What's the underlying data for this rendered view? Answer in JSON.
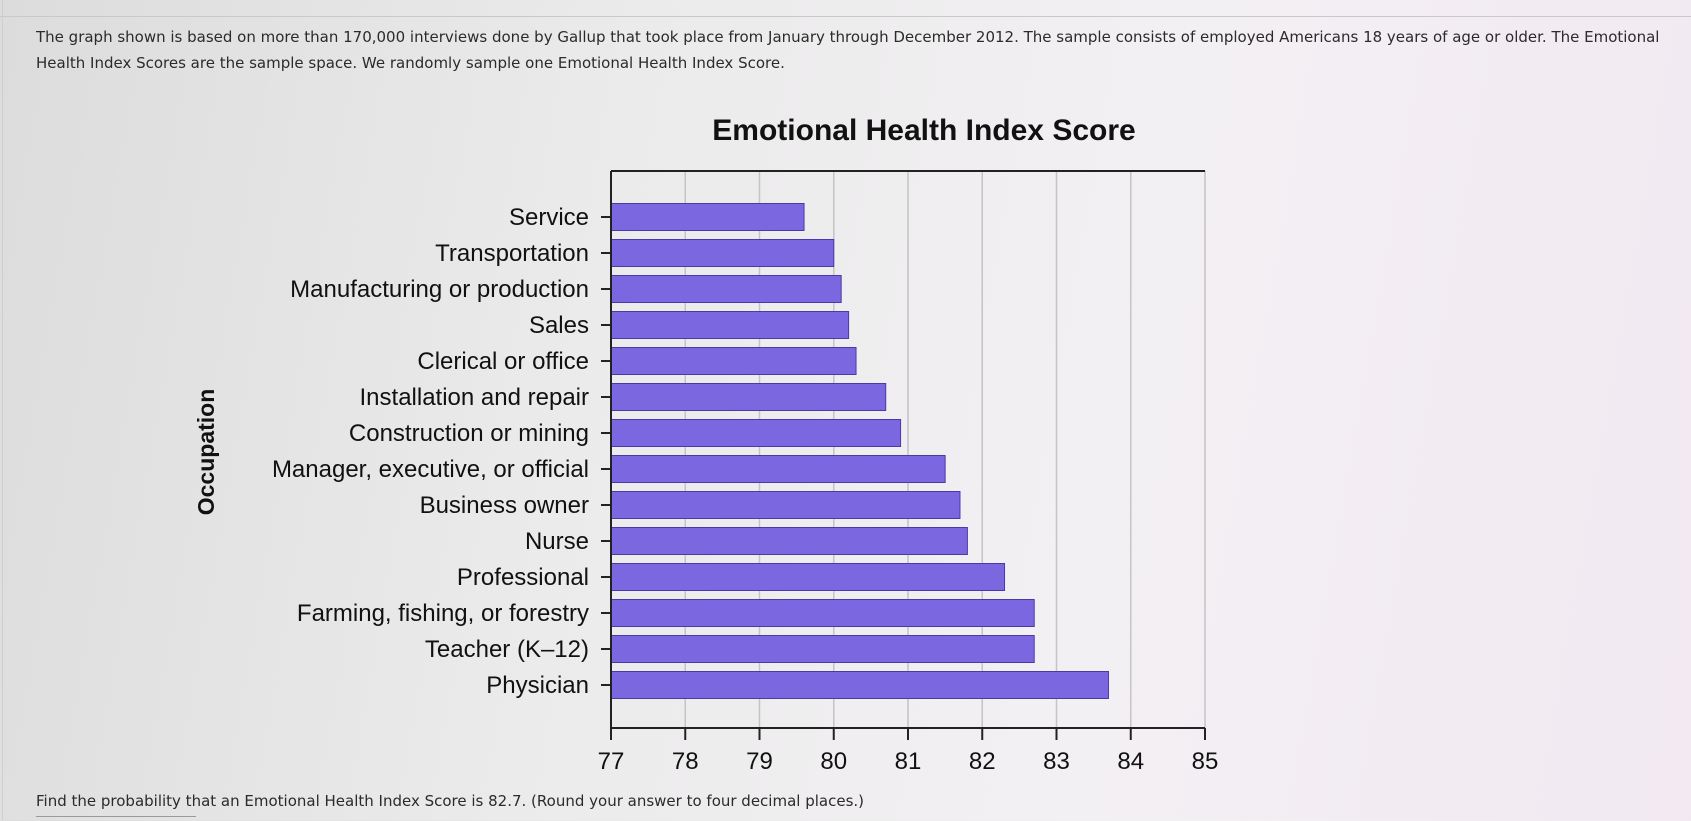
{
  "intro_text": "The graph shown is based on more than 170,000 interviews done by Gallup that took place from January through December 2012. The sample consists of employed Americans 18 years of age or older. The Emotional Health Index Scores are the sample space. We randomly sample one Emotional Health Index Score.",
  "question_text": "Find the probability that an Emotional Health Index Score is 82.7. (Round your answer to four decimal places.)",
  "chart_data": {
    "type": "bar",
    "orientation": "horizontal",
    "title": "Emotional Health Index Score",
    "xlabel": "",
    "ylabel": "Occupation",
    "categories": [
      "Service",
      "Transportation",
      "Manufacturing or production",
      "Sales",
      "Clerical or office",
      "Installation and repair",
      "Construction or mining",
      "Manager, executive, or official",
      "Business owner",
      "Nurse",
      "Professional",
      "Farming, fishing, or forestry",
      "Teacher (K–12)",
      "Physician"
    ],
    "values": [
      79.6,
      80.0,
      80.1,
      80.2,
      80.3,
      80.7,
      80.9,
      81.5,
      81.7,
      81.8,
      82.3,
      82.7,
      82.7,
      83.7
    ],
    "xlim": [
      77,
      85
    ],
    "xticks": [
      "77",
      "78",
      "79",
      "80",
      "81",
      "82",
      "83",
      "84",
      "85"
    ],
    "grid": "vertical",
    "legend": "none",
    "colors": {
      "bar_fill": "#7b68e0",
      "bar_stroke": "#4a3aa8",
      "grid": "#c4c4c4",
      "axis": "#222222"
    }
  }
}
